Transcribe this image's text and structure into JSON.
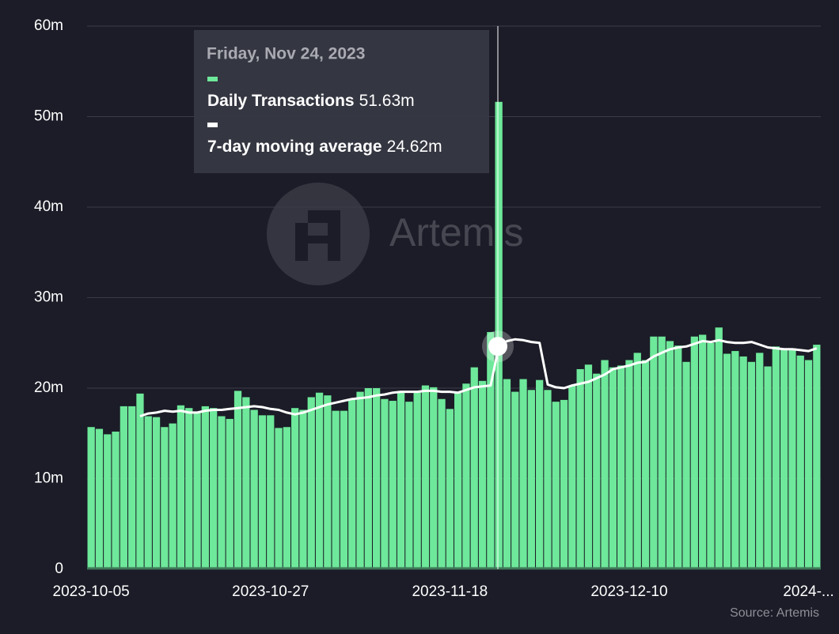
{
  "chart_data": {
    "type": "bar-line",
    "watermark": "Artemis",
    "source": "Source: Artemis",
    "x": [
      "2023-10-05",
      "2023-10-06",
      "2023-10-07",
      "2023-10-08",
      "2023-10-09",
      "2023-10-10",
      "2023-10-11",
      "2023-10-12",
      "2023-10-13",
      "2023-10-14",
      "2023-10-15",
      "2023-10-16",
      "2023-10-17",
      "2023-10-18",
      "2023-10-19",
      "2023-10-20",
      "2023-10-21",
      "2023-10-22",
      "2023-10-23",
      "2023-10-24",
      "2023-10-25",
      "2023-10-26",
      "2023-10-27",
      "2023-10-28",
      "2023-10-29",
      "2023-10-30",
      "2023-10-31",
      "2023-11-01",
      "2023-11-02",
      "2023-11-03",
      "2023-11-04",
      "2023-11-05",
      "2023-11-06",
      "2023-11-07",
      "2023-11-08",
      "2023-11-09",
      "2023-11-10",
      "2023-11-11",
      "2023-11-12",
      "2023-11-13",
      "2023-11-14",
      "2023-11-15",
      "2023-11-16",
      "2023-11-17",
      "2023-11-18",
      "2023-11-19",
      "2023-11-20",
      "2023-11-21",
      "2023-11-22",
      "2023-11-23",
      "2023-11-24",
      "2023-11-25",
      "2023-11-26",
      "2023-11-27",
      "2023-11-28",
      "2023-11-29",
      "2023-11-30",
      "2023-12-01",
      "2023-12-02",
      "2023-12-03",
      "2023-12-04",
      "2023-12-05",
      "2023-12-06",
      "2023-12-07",
      "2023-12-08",
      "2023-12-09",
      "2023-12-10",
      "2023-12-11",
      "2023-12-12",
      "2023-12-13",
      "2023-12-14",
      "2023-12-15",
      "2023-12-16",
      "2023-12-17",
      "2023-12-18",
      "2023-12-19",
      "2023-12-20",
      "2023-12-21",
      "2023-12-22",
      "2023-12-23",
      "2023-12-24",
      "2023-12-25",
      "2023-12-26",
      "2023-12-27",
      "2023-12-28",
      "2023-12-29",
      "2023-12-30",
      "2023-12-31",
      "2024-01-01",
      "2024-01-02"
    ],
    "xticks": [
      {
        "value": "2023-10-05",
        "label": "2023-10-05"
      },
      {
        "value": "2023-10-27",
        "label": "2023-10-27"
      },
      {
        "value": "2023-11-18",
        "label": "2023-11-18"
      },
      {
        "value": "2023-12-10",
        "label": "2023-12-10"
      },
      {
        "value": "2024-01-01",
        "label": "2024-..."
      }
    ],
    "ylim": [
      0,
      60
    ],
    "yticks": [
      {
        "value": 0,
        "label": "0"
      },
      {
        "value": 10,
        "label": "10m"
      },
      {
        "value": 20,
        "label": "20m"
      },
      {
        "value": 30,
        "label": "30m"
      },
      {
        "value": 40,
        "label": "40m"
      },
      {
        "value": 50,
        "label": "50m"
      },
      {
        "value": 60,
        "label": "60m"
      }
    ],
    "grid": true,
    "series": [
      {
        "name": "Daily Transactions",
        "type": "bar",
        "color": "#6ee89a",
        "values": [
          15.7,
          15.5,
          14.9,
          15.2,
          18.0,
          18.0,
          19.4,
          16.9,
          16.8,
          15.7,
          16.1,
          18.1,
          17.8,
          17.3,
          18.0,
          17.8,
          16.9,
          16.6,
          19.7,
          19.0,
          17.6,
          17.0,
          17.0,
          15.6,
          15.7,
          17.8,
          17.6,
          19.0,
          19.5,
          19.2,
          17.5,
          17.5,
          18.8,
          19.6,
          20.0,
          20.0,
          18.8,
          18.6,
          19.5,
          18.5,
          19.6,
          20.3,
          20.1,
          18.8,
          17.7,
          19.5,
          20.5,
          22.3,
          20.8,
          26.2,
          51.63,
          21.0,
          19.6,
          21.0,
          19.8,
          20.9,
          19.8,
          18.5,
          18.7,
          20.3,
          22.1,
          22.6,
          21.6,
          23.1,
          22.3,
          22.5,
          23.1,
          23.9,
          23.1,
          25.7,
          25.7,
          25.2,
          24.7,
          22.9,
          25.7,
          25.9,
          25.0,
          26.7,
          23.8,
          24.1,
          23.5,
          22.9,
          23.9,
          22.4,
          24.6,
          24.4,
          24.4,
          23.6,
          23.1,
          24.8
        ]
      },
      {
        "name": "7-day moving average",
        "type": "line",
        "color": "#ffffff",
        "values": [
          null,
          null,
          null,
          null,
          null,
          null,
          16.9,
          17.2,
          17.3,
          17.5,
          17.4,
          17.5,
          17.3,
          17.3,
          17.5,
          17.6,
          17.6,
          17.7,
          17.8,
          17.9,
          18.0,
          17.9,
          17.7,
          17.6,
          17.3,
          17.1,
          17.3,
          17.6,
          17.9,
          18.2,
          18.4,
          18.6,
          18.8,
          18.9,
          19.0,
          19.2,
          19.3,
          19.5,
          19.6,
          19.6,
          19.6,
          19.7,
          19.7,
          19.6,
          19.6,
          19.5,
          19.8,
          20.1,
          20.2,
          20.3,
          24.62,
          25.2,
          25.4,
          25.3,
          25.1,
          25.0,
          20.4,
          20.1,
          20.0,
          20.3,
          20.5,
          20.7,
          21.1,
          21.5,
          22.1,
          22.3,
          22.5,
          22.8,
          22.9,
          23.5,
          23.9,
          24.3,
          24.5,
          24.6,
          24.9,
          25.2,
          25.1,
          25.3,
          25.1,
          25.0,
          25.0,
          25.1,
          24.8,
          24.5,
          24.4,
          24.3,
          24.3,
          24.2,
          24.1,
          24.4
        ]
      }
    ],
    "tooltip": {
      "title": "Friday, Nov 24, 2023",
      "value_labels": [
        "51.63m",
        "24.62m"
      ]
    }
  }
}
